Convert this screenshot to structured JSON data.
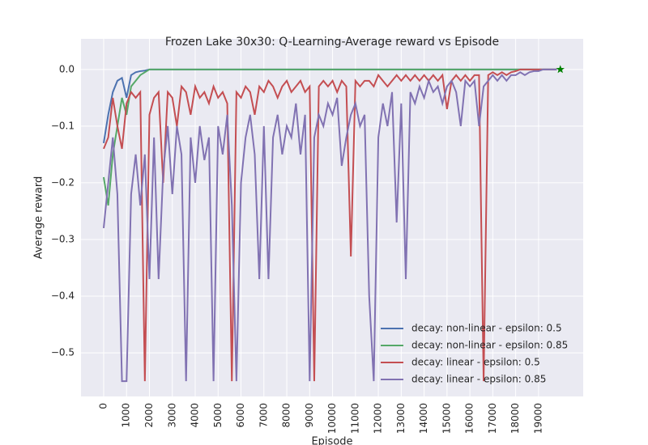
{
  "chart_data": {
    "type": "line",
    "title": "Frozen Lake 30x30: Q-Learning-Average reward vs Episode",
    "xlabel": "Episode",
    "ylabel": "Average reward",
    "x": [
      0,
      200,
      400,
      600,
      800,
      1000,
      1200,
      1400,
      1600,
      1800,
      2000,
      2200,
      2400,
      2600,
      2800,
      3000,
      3200,
      3400,
      3600,
      3800,
      4000,
      4200,
      4400,
      4600,
      4800,
      5000,
      5200,
      5400,
      5600,
      5800,
      6000,
      6200,
      6400,
      6600,
      6800,
      7000,
      7200,
      7400,
      7600,
      7800,
      8000,
      8200,
      8400,
      8600,
      8800,
      9000,
      9200,
      9400,
      9600,
      9800,
      10000,
      10200,
      10400,
      10600,
      10800,
      11000,
      11200,
      11400,
      11600,
      11800,
      12000,
      12200,
      12400,
      12600,
      12800,
      13000,
      13200,
      13400,
      13600,
      13800,
      14000,
      14200,
      14400,
      14600,
      14800,
      15000,
      15200,
      15400,
      15600,
      15800,
      16000,
      16200,
      16400,
      16600,
      16800,
      17000,
      17200,
      17400,
      17600,
      17800,
      18000,
      18200,
      18400,
      18600,
      18800,
      19000,
      19200,
      19400,
      19600,
      19800
    ],
    "series": [
      {
        "name": "decay: non-linear - epsilon: 0.5",
        "color": "#4c72b0",
        "values": [
          -0.13,
          -0.08,
          -0.04,
          -0.02,
          -0.015,
          -0.05,
          -0.01,
          -0.005,
          -0.003,
          -0.002,
          0,
          0,
          0,
          0,
          0,
          0,
          0,
          0,
          0,
          0,
          0,
          0,
          0,
          0,
          0,
          0,
          0,
          0,
          0,
          0,
          0,
          0,
          0,
          0,
          0,
          0,
          0,
          0,
          0,
          0,
          0,
          0,
          0,
          0,
          0,
          0,
          0,
          0,
          0,
          0,
          0,
          0,
          0,
          0,
          0,
          0,
          0,
          0,
          0,
          0,
          0,
          0,
          0,
          0,
          0,
          0,
          0,
          0,
          0,
          0,
          0,
          0,
          0,
          0,
          0,
          0,
          0,
          0,
          0,
          0,
          0,
          0,
          0,
          0,
          0,
          0,
          0,
          0,
          0,
          0,
          0,
          0,
          0,
          0,
          0,
          0,
          0,
          0,
          0,
          0
        ]
      },
      {
        "name": "decay: non-linear - epsilon: 0.85",
        "color": "#55a868",
        "values": [
          -0.19,
          -0.24,
          -0.15,
          -0.1,
          -0.05,
          -0.08,
          -0.03,
          -0.02,
          -0.01,
          -0.005,
          0,
          0,
          0,
          0,
          0,
          0,
          0,
          0,
          0,
          0,
          0,
          0,
          0,
          0,
          0,
          0,
          0,
          0,
          0,
          0,
          0,
          0,
          0,
          0,
          0,
          0,
          0,
          0,
          0,
          0,
          0,
          0,
          0,
          0,
          0,
          0,
          0,
          0,
          0,
          0,
          0,
          0,
          0,
          0,
          0,
          0,
          0,
          0,
          0,
          0,
          0,
          0,
          0,
          0,
          0,
          0,
          0,
          0,
          0,
          0,
          0,
          0,
          0,
          0,
          0,
          0,
          0,
          0,
          0,
          0,
          0,
          0,
          0,
          0,
          0,
          0,
          0,
          0,
          0,
          0,
          0,
          0,
          0,
          0,
          0,
          0,
          0,
          0,
          0,
          0
        ]
      },
      {
        "name": "decay: linear - epsilon: 0.5",
        "color": "#c44e52",
        "values": [
          -0.14,
          -0.12,
          -0.05,
          -0.1,
          -0.14,
          -0.06,
          -0.04,
          -0.05,
          -0.04,
          -0.55,
          -0.08,
          -0.05,
          -0.04,
          -0.2,
          -0.04,
          -0.05,
          -0.1,
          -0.03,
          -0.04,
          -0.08,
          -0.03,
          -0.05,
          -0.04,
          -0.06,
          -0.03,
          -0.05,
          -0.04,
          -0.06,
          -0.55,
          -0.04,
          -0.05,
          -0.03,
          -0.04,
          -0.08,
          -0.03,
          -0.04,
          -0.02,
          -0.03,
          -0.05,
          -0.03,
          -0.02,
          -0.04,
          -0.03,
          -0.02,
          -0.04,
          -0.03,
          -0.55,
          -0.03,
          -0.02,
          -0.03,
          -0.02,
          -0.04,
          -0.02,
          -0.03,
          -0.33,
          -0.02,
          -0.03,
          -0.02,
          -0.02,
          -0.03,
          -0.01,
          -0.02,
          -0.03,
          -0.02,
          -0.01,
          -0.02,
          -0.01,
          -0.02,
          -0.01,
          -0.02,
          -0.01,
          -0.02,
          -0.01,
          -0.02,
          -0.01,
          -0.07,
          -0.02,
          -0.01,
          -0.02,
          -0.01,
          -0.02,
          -0.01,
          -0.01,
          -0.55,
          -0.01,
          -0.005,
          -0.01,
          -0.005,
          -0.01,
          -0.005,
          -0.003,
          0,
          0,
          0,
          0,
          0,
          0,
          0,
          0,
          0
        ]
      },
      {
        "name": "decay: linear - epsilon: 0.85",
        "color": "#8172b2",
        "values": [
          -0.28,
          -0.2,
          -0.12,
          -0.22,
          -0.55,
          -0.55,
          -0.22,
          -0.15,
          -0.24,
          -0.15,
          -0.37,
          -0.12,
          -0.37,
          -0.18,
          -0.1,
          -0.22,
          -0.1,
          -0.15,
          -0.55,
          -0.12,
          -0.2,
          -0.1,
          -0.16,
          -0.12,
          -0.55,
          -0.1,
          -0.15,
          -0.08,
          -0.24,
          -0.55,
          -0.2,
          -0.12,
          -0.08,
          -0.15,
          -0.37,
          -0.1,
          -0.37,
          -0.12,
          -0.08,
          -0.15,
          -0.1,
          -0.12,
          -0.06,
          -0.15,
          -0.08,
          -0.55,
          -0.12,
          -0.08,
          -0.1,
          -0.06,
          -0.08,
          -0.05,
          -0.17,
          -0.12,
          -0.08,
          -0.06,
          -0.1,
          -0.08,
          -0.4,
          -0.55,
          -0.12,
          -0.06,
          -0.1,
          -0.04,
          -0.27,
          -0.06,
          -0.37,
          -0.04,
          -0.06,
          -0.03,
          -0.05,
          -0.02,
          -0.04,
          -0.03,
          -0.06,
          -0.03,
          -0.02,
          -0.04,
          -0.1,
          -0.02,
          -0.03,
          -0.02,
          -0.1,
          -0.03,
          -0.02,
          -0.01,
          -0.02,
          -0.01,
          -0.02,
          -0.01,
          -0.01,
          -0.005,
          -0.01,
          -0.005,
          -0.003,
          -0.003,
          0,
          0,
          0,
          0
        ]
      }
    ],
    "star": {
      "x": 19950,
      "y": 0,
      "color": "#008000"
    },
    "xlim": [
      -990,
      20950
    ],
    "ylim": [
      -0.577,
      0.054
    ],
    "xticks": [
      0,
      1000,
      2000,
      3000,
      4000,
      5000,
      6000,
      7000,
      8000,
      9000,
      10000,
      11000,
      12000,
      13000,
      14000,
      15000,
      16000,
      17000,
      18000,
      19000
    ],
    "yticks": [
      {
        "value": 0,
        "label": "0.0"
      },
      {
        "value": -0.1,
        "label": "−0.1"
      },
      {
        "value": -0.2,
        "label": "−0.2"
      },
      {
        "value": -0.3,
        "label": "−0.3"
      },
      {
        "value": -0.4,
        "label": "−0.4"
      },
      {
        "value": -0.5,
        "label": "−0.5"
      }
    ],
    "grid": true,
    "legend": "lower right"
  }
}
